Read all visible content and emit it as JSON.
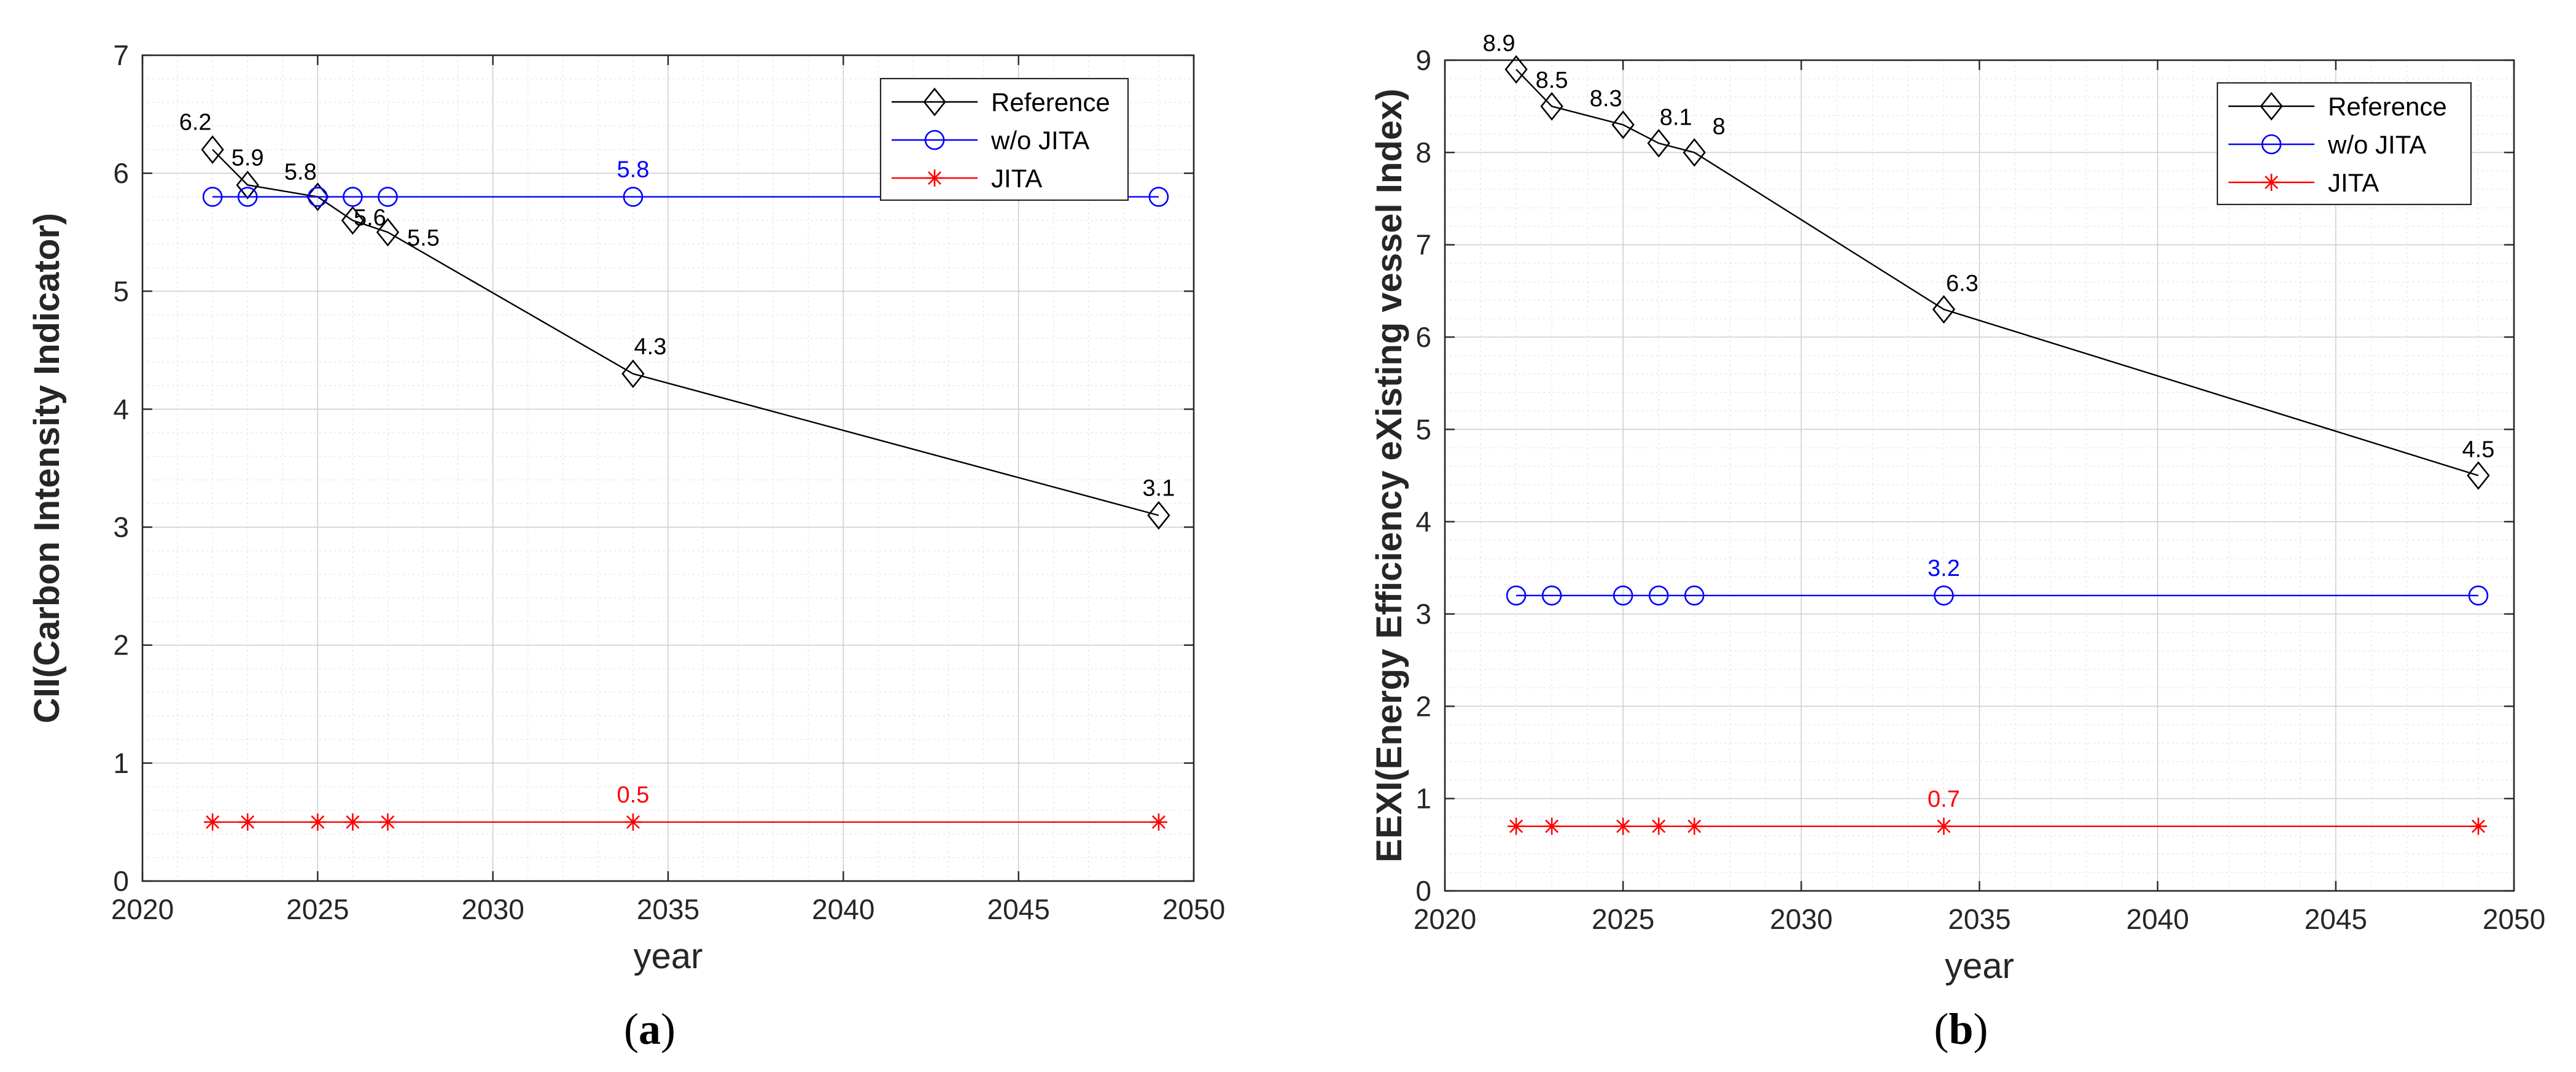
{
  "chart_data": [
    {
      "type": "line",
      "panel": "a",
      "caption": {
        "open": "(",
        "letter": "a",
        "close": ")"
      },
      "xlabel": "year",
      "ylabel": "CII(Carbon Intensity Indicator)",
      "xlim": [
        2020,
        2050
      ],
      "ylim": [
        0,
        7
      ],
      "xticks": [
        2020,
        2025,
        2030,
        2035,
        2040,
        2045,
        2050
      ],
      "yticks": [
        0,
        1,
        2,
        3,
        4,
        5,
        6,
        7
      ],
      "grid": true,
      "legend_position": "top-right",
      "x": [
        2022,
        2023,
        2025,
        2026,
        2027,
        2034,
        2049
      ],
      "series": [
        {
          "name": "Reference",
          "color": "#000000",
          "marker": "diamond",
          "values": [
            6.2,
            5.9,
            5.8,
            5.6,
            5.5,
            4.3,
            3.1
          ],
          "labels": [
            "6.2",
            "5.9",
            "5.8",
            "5.6",
            "5.5",
            "4.3",
            "3.1"
          ]
        },
        {
          "name": "w/o JITA",
          "color": "#0000ff",
          "marker": "circle",
          "values": [
            5.8,
            5.8,
            5.8,
            5.8,
            5.8,
            5.8,
            5.8
          ],
          "labels": [
            "",
            "",
            "",
            "",
            "",
            "5.8",
            ""
          ]
        },
        {
          "name": "JITA",
          "color": "#ff0000",
          "marker": "star",
          "values": [
            0.5,
            0.5,
            0.5,
            0.5,
            0.5,
            0.5,
            0.5
          ],
          "labels": [
            "",
            "",
            "",
            "",
            "",
            "0.5",
            ""
          ]
        }
      ]
    },
    {
      "type": "line",
      "panel": "b",
      "caption": {
        "open": "(",
        "letter": "b",
        "close": ")"
      },
      "xlabel": "year",
      "ylabel": "EEXI(Energy Efficiency eXisting vessel Index)",
      "xlim": [
        2020,
        2050
      ],
      "ylim": [
        0,
        9
      ],
      "xticks": [
        2020,
        2025,
        2030,
        2035,
        2040,
        2045,
        2050
      ],
      "yticks": [
        0,
        1,
        2,
        3,
        4,
        5,
        6,
        7,
        8,
        9
      ],
      "grid": true,
      "legend_position": "top-right",
      "x": [
        2022,
        2023,
        2025,
        2026,
        2027,
        2034,
        2049
      ],
      "series": [
        {
          "name": "Reference",
          "color": "#000000",
          "marker": "diamond",
          "values": [
            8.9,
            8.5,
            8.3,
            8.1,
            8.0,
            6.3,
            4.5
          ],
          "labels": [
            "8.9",
            "8.5",
            "8.3",
            "8.1",
            "8",
            "6.3",
            "4.5"
          ]
        },
        {
          "name": "w/o JITA",
          "color": "#0000ff",
          "marker": "circle",
          "values": [
            3.2,
            3.2,
            3.2,
            3.2,
            3.2,
            3.2,
            3.2
          ],
          "labels": [
            "",
            "",
            "",
            "",
            "",
            "3.2",
            ""
          ]
        },
        {
          "name": "JITA",
          "color": "#ff0000",
          "marker": "star",
          "values": [
            0.7,
            0.7,
            0.7,
            0.7,
            0.7,
            0.7,
            0.7
          ],
          "labels": [
            "",
            "",
            "",
            "",
            "",
            "0.7",
            ""
          ]
        }
      ]
    }
  ]
}
